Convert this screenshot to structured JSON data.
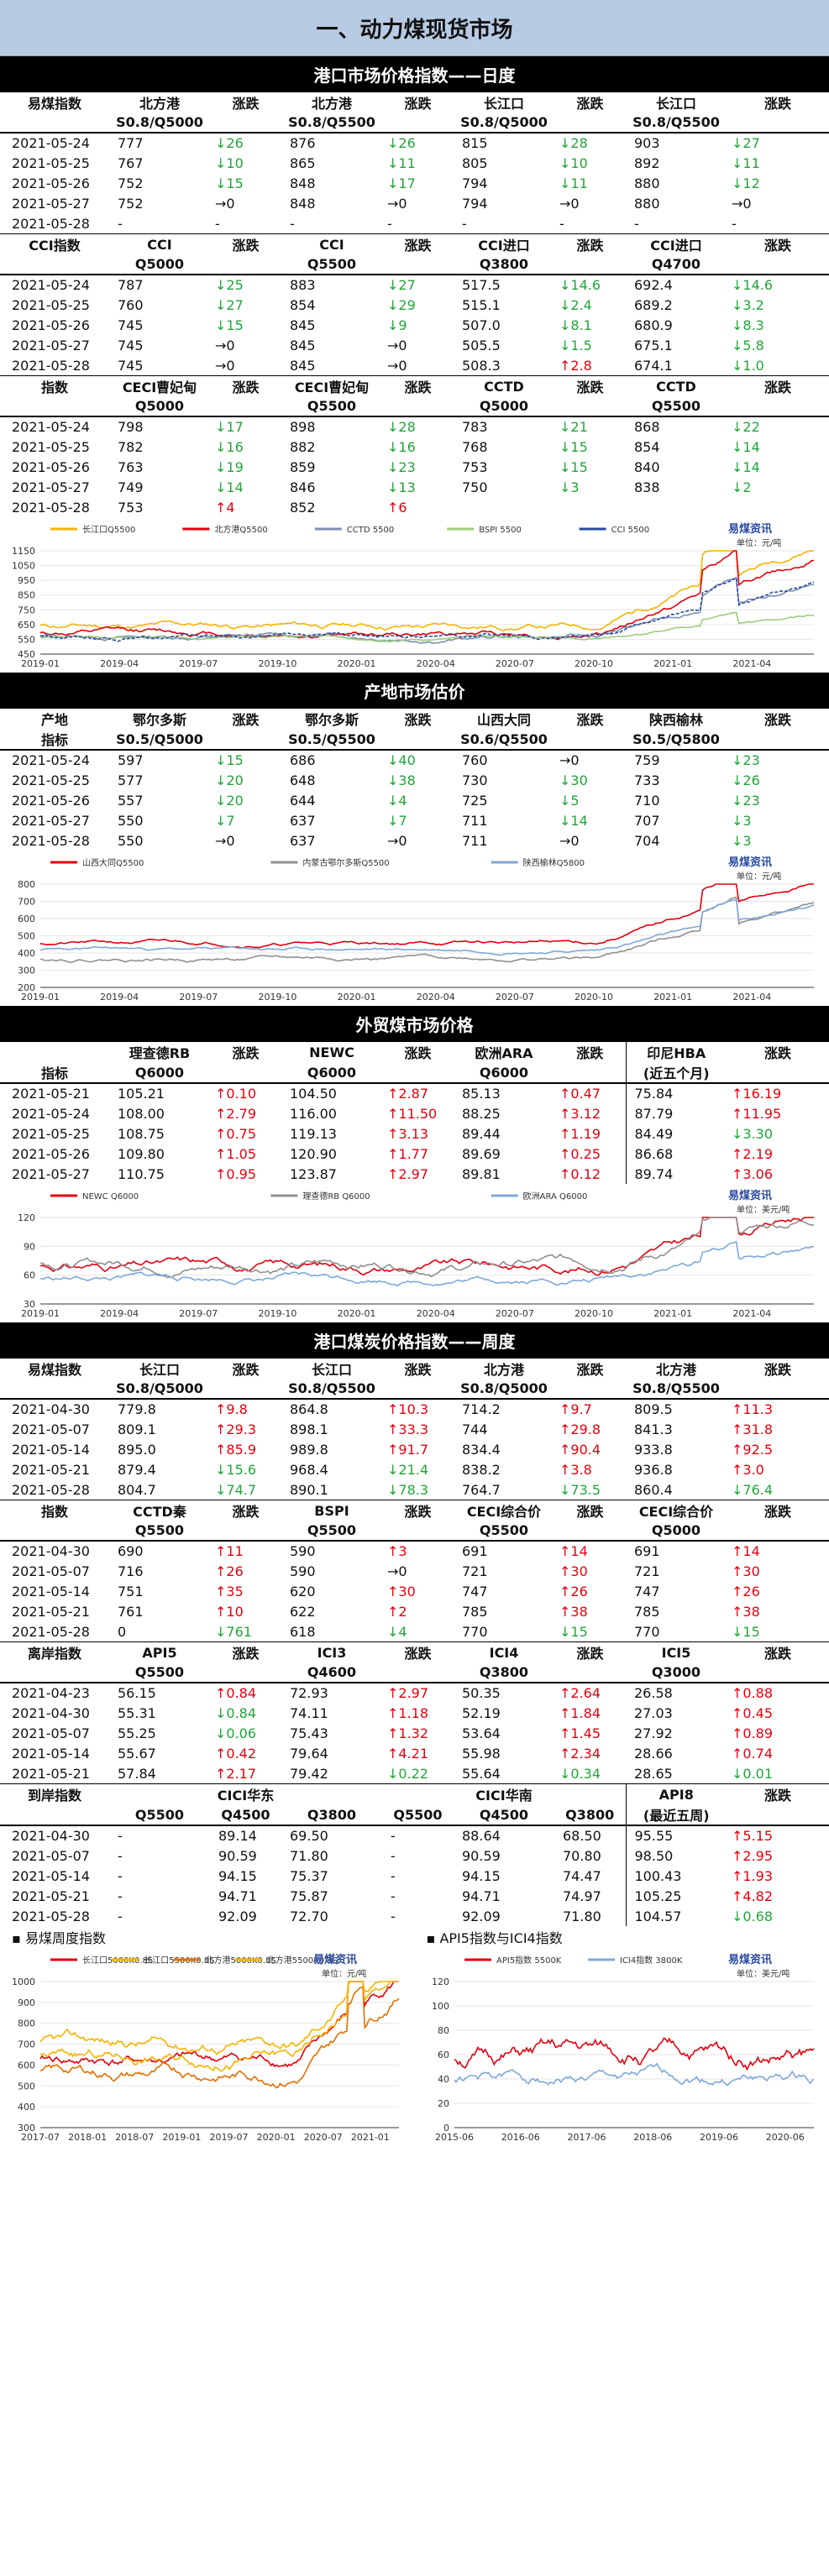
{
  "title": "一、动力煤现货市场",
  "sec1": "港口市场价格指数——日度",
  "t1": {
    "h1": [
      "易煤指数",
      "北方港",
      "涨跌",
      "北方港",
      "涨跌",
      "长江口",
      "涨跌",
      "长江口",
      "涨跌"
    ],
    "h2": [
      "",
      "S0.8/Q5000",
      "",
      "S0.8/Q5500",
      "",
      "S0.8/Q5000",
      "",
      "S0.8/Q5500",
      ""
    ],
    "rows": [
      [
        "2021-05-24",
        "777",
        "↓26",
        "876",
        "↓26",
        "815",
        "↓28",
        "903",
        "↓27"
      ],
      [
        "2021-05-25",
        "767",
        "↓10",
        "865",
        "↓11",
        "805",
        "↓10",
        "892",
        "↓11"
      ],
      [
        "2021-05-26",
        "752",
        "↓15",
        "848",
        "↓17",
        "794",
        "↓11",
        "880",
        "↓12"
      ],
      [
        "2021-05-27",
        "752",
        "→0",
        "848",
        "→0",
        "794",
        "→0",
        "880",
        "→0"
      ],
      [
        "2021-05-28",
        "-",
        "-",
        "-",
        "-",
        "-",
        "-",
        "-",
        "-"
      ]
    ]
  },
  "t2": {
    "h1": [
      "CCI指数",
      "CCI",
      "涨跌",
      "CCI",
      "涨跌",
      "CCI进口",
      "涨跌",
      "CCI进口",
      "涨跌"
    ],
    "h2": [
      "",
      "Q5000",
      "",
      "Q5500",
      "",
      "Q3800",
      "",
      "Q4700",
      ""
    ],
    "rows": [
      [
        "2021-05-24",
        "787",
        "↓25",
        "883",
        "↓27",
        "517.5",
        "↓14.6",
        "692.4",
        "↓14.6"
      ],
      [
        "2021-05-25",
        "760",
        "↓27",
        "854",
        "↓29",
        "515.1",
        "↓2.4",
        "689.2",
        "↓3.2"
      ],
      [
        "2021-05-26",
        "745",
        "↓15",
        "845",
        "↓9",
        "507.0",
        "↓8.1",
        "680.9",
        "↓8.3"
      ],
      [
        "2021-05-27",
        "745",
        "→0",
        "845",
        "→0",
        "505.5",
        "↓1.5",
        "675.1",
        "↓5.8"
      ],
      [
        "2021-05-28",
        "745",
        "→0",
        "845",
        "→0",
        "508.3",
        "↑2.8",
        "674.1",
        "↓1.0"
      ]
    ]
  },
  "t3": {
    "h1": [
      "指数",
      "CECI曹妃甸",
      "涨跌",
      "CECI曹妃甸",
      "涨跌",
      "CCTD",
      "涨跌",
      "CCTD",
      "涨跌"
    ],
    "h2": [
      "",
      "Q5000",
      "",
      "Q5500",
      "",
      "Q5000",
      "",
      "Q5500",
      ""
    ],
    "rows": [
      [
        "2021-05-24",
        "798",
        "↓17",
        "898",
        "↓28",
        "783",
        "↓21",
        "868",
        "↓22"
      ],
      [
        "2021-05-25",
        "782",
        "↓16",
        "882",
        "↓16",
        "768",
        "↓15",
        "854",
        "↓14"
      ],
      [
        "2021-05-26",
        "763",
        "↓19",
        "859",
        "↓23",
        "753",
        "↓15",
        "840",
        "↓14"
      ],
      [
        "2021-05-27",
        "749",
        "↓14",
        "846",
        "↓13",
        "750",
        "↓3",
        "838",
        "↓2"
      ],
      [
        "2021-05-28",
        "753",
        "↑4",
        "852",
        "↑6",
        "",
        "",
        "",
        ""
      ]
    ]
  },
  "chart1": {
    "legend": [
      "长江口Q5500",
      "北方港Q5500",
      "CCTD 5500",
      "BSPI 5500",
      "CCI 5500"
    ],
    "unit": "单位：元/吨",
    "logo": "易煤资讯",
    "logo_sub": "Yimei Info",
    "colors": [
      "#f5b400",
      "#e3000f",
      "#7d8fb0",
      "#9dcc7a",
      "#2a4aa0"
    ],
    "yticks": [
      "1150",
      "1050",
      "950",
      "850",
      "750",
      "650",
      "550",
      "450"
    ],
    "xticks": [
      "2019-01",
      "2019-04",
      "2019-07",
      "2019-10",
      "2020-01",
      "2020-04",
      "2020-07",
      "2020-10",
      "2021-01",
      "2021-04"
    ]
  },
  "sec2": "产地市场估价",
  "t4": {
    "h1": [
      "产地",
      "鄂尔多斯",
      "涨跌",
      "鄂尔多斯",
      "涨跌",
      "山西大同",
      "涨跌",
      "陕西榆林",
      "涨跌"
    ],
    "h2": [
      "指标",
      "S0.5/Q5000",
      "",
      "S0.5/Q5500",
      "",
      "S0.6/Q5500",
      "",
      "S0.5/Q5800",
      ""
    ],
    "rows": [
      [
        "2021-05-24",
        "597",
        "↓15",
        "686",
        "↓40",
        "760",
        "→0",
        "759",
        "↓23"
      ],
      [
        "2021-05-25",
        "577",
        "↓20",
        "648",
        "↓38",
        "730",
        "↓30",
        "733",
        "↓26"
      ],
      [
        "2021-05-26",
        "557",
        "↓20",
        "644",
        "↓4",
        "725",
        "↓5",
        "710",
        "↓23"
      ],
      [
        "2021-05-27",
        "550",
        "↓7",
        "637",
        "↓7",
        "711",
        "↓14",
        "707",
        "↓3"
      ],
      [
        "2021-05-28",
        "550",
        "→0",
        "637",
        "→0",
        "711",
        "→0",
        "704",
        "↓3"
      ]
    ]
  },
  "chart2": {
    "legend": [
      "山西大同Q5500",
      "内蒙古鄂尔多斯Q5500",
      "陕西榆林Q5800"
    ],
    "unit": "单位：元/吨",
    "logo": "易煤资讯",
    "colors": [
      "#e3000f",
      "#909090",
      "#7fa8d8"
    ],
    "yticks": [
      "800",
      "700",
      "600",
      "500",
      "400",
      "300",
      "200"
    ],
    "xticks": [
      "2019-01",
      "2019-04",
      "2019-07",
      "2019-10",
      "2020-01",
      "2020-04",
      "2020-07",
      "2020-10",
      "2021-01",
      "2021-04"
    ]
  },
  "sec3": "外贸煤市场价格",
  "t5": {
    "h1": [
      "",
      "理查德RB",
      "涨跌",
      "NEWC",
      "涨跌",
      "欧洲ARA",
      "涨跌",
      "印尼HBA",
      "涨跌"
    ],
    "h2": [
      "指标",
      "Q6000",
      "",
      "Q6000",
      "",
      "Q6000",
      "",
      "(近五个月)",
      ""
    ],
    "rows": [
      [
        "2021-05-21",
        "105.21",
        "↑0.10",
        "104.50",
        "↑2.87",
        "85.13",
        "↑0.47",
        "75.84",
        "↑16.19"
      ],
      [
        "2021-05-24",
        "108.00",
        "↑2.79",
        "116.00",
        "↑11.50",
        "88.25",
        "↑3.12",
        "87.79",
        "↑11.95"
      ],
      [
        "2021-05-25",
        "108.75",
        "↑0.75",
        "119.13",
        "↑3.13",
        "89.44",
        "↑1.19",
        "84.49",
        "↓3.30"
      ],
      [
        "2021-05-26",
        "109.80",
        "↑1.05",
        "120.90",
        "↑1.77",
        "89.69",
        "↑0.25",
        "86.68",
        "↑2.19"
      ],
      [
        "2021-05-27",
        "110.75",
        "↑0.95",
        "123.87",
        "↑2.97",
        "89.81",
        "↑0.12",
        "89.74",
        "↑3.06"
      ]
    ]
  },
  "chart3": {
    "legend": [
      "NEWC Q6000",
      "理查德RB Q6000",
      "欧洲ARA Q6000"
    ],
    "unit": "单位：美元/吨",
    "logo": "易煤资讯",
    "colors": [
      "#e3000f",
      "#909090",
      "#7fa8d8"
    ],
    "yticks": [
      "120",
      "90",
      "60",
      "30"
    ],
    "xticks": [
      "2019-01",
      "2019-04",
      "2019-07",
      "2019-10",
      "2020-01",
      "2020-04",
      "2020-07",
      "2020-10",
      "2021-01",
      "2021-04"
    ]
  },
  "sec4": "港口煤炭价格指数——周度",
  "t6": {
    "h1": [
      "易煤指数",
      "长江口",
      "涨跌",
      "长江口",
      "涨跌",
      "北方港",
      "涨跌",
      "北方港",
      "涨跌"
    ],
    "h2": [
      "",
      "S0.8/Q5000",
      "",
      "S0.8/Q5500",
      "",
      "S0.8/Q5000",
      "",
      "S0.8/Q5500",
      ""
    ],
    "rows": [
      [
        "2021-04-30",
        "779.8",
        "↑9.8",
        "864.8",
        "↑10.3",
        "714.2",
        "↑9.7",
        "809.5",
        "↑11.3"
      ],
      [
        "2021-05-07",
        "809.1",
        "↑29.3",
        "898.1",
        "↑33.3",
        "744",
        "↑29.8",
        "841.3",
        "↑31.8"
      ],
      [
        "2021-05-14",
        "895.0",
        "↑85.9",
        "989.8",
        "↑91.7",
        "834.4",
        "↑90.4",
        "933.8",
        "↑92.5"
      ],
      [
        "2021-05-21",
        "879.4",
        "↓15.6",
        "968.4",
        "↓21.4",
        "838.2",
        "↑3.8",
        "936.8",
        "↑3.0"
      ],
      [
        "2021-05-28",
        "804.7",
        "↓74.7",
        "890.1",
        "↓78.3",
        "764.7",
        "↓73.5",
        "860.4",
        "↓76.4"
      ]
    ]
  },
  "t7": {
    "h1": [
      "指数",
      "CCTD秦",
      "涨跌",
      "BSPI",
      "涨跌",
      "CECI综合价",
      "涨跌",
      "CECI综合价",
      "涨跌"
    ],
    "h2": [
      "",
      "Q5500",
      "",
      "Q5500",
      "",
      "Q5500",
      "",
      "Q5000",
      ""
    ],
    "rows": [
      [
        "2021-04-30",
        "690",
        "↑11",
        "590",
        "↑3",
        "691",
        "↑14",
        "691",
        "↑14"
      ],
      [
        "2021-05-07",
        "716",
        "↑26",
        "590",
        "→0",
        "721",
        "↑30",
        "721",
        "↑30"
      ],
      [
        "2021-05-14",
        "751",
        "↑35",
        "620",
        "↑30",
        "747",
        "↑26",
        "747",
        "↑26"
      ],
      [
        "2021-05-21",
        "761",
        "↑10",
        "622",
        "↑2",
        "785",
        "↑38",
        "785",
        "↑38"
      ],
      [
        "2021-05-28",
        "0",
        "↓761",
        "618",
        "↓4",
        "770",
        "↓15",
        "770",
        "↓15"
      ]
    ]
  },
  "t8": {
    "h1": [
      "离岸指数",
      "API5",
      "涨跌",
      "ICI3",
      "涨跌",
      "ICI4",
      "涨跌",
      "ICI5",
      "涨跌"
    ],
    "h2": [
      "",
      "Q5500",
      "",
      "Q4600",
      "",
      "Q3800",
      "",
      "Q3000",
      ""
    ],
    "rows": [
      [
        "2021-04-23",
        "56.15",
        "↑0.84",
        "72.93",
        "↑2.97",
        "50.35",
        "↑2.64",
        "26.58",
        "↑0.88"
      ],
      [
        "2021-04-30",
        "55.31",
        "↓0.84",
        "74.11",
        "↑1.18",
        "52.19",
        "↑1.84",
        "27.03",
        "↑0.45"
      ],
      [
        "2021-05-07",
        "55.25",
        "↓0.06",
        "75.43",
        "↑1.32",
        "53.64",
        "↑1.45",
        "27.92",
        "↑0.89"
      ],
      [
        "2021-05-14",
        "55.67",
        "↑0.42",
        "79.64",
        "↑4.21",
        "55.98",
        "↑2.34",
        "28.66",
        "↑0.74"
      ],
      [
        "2021-05-21",
        "57.84",
        "↑2.17",
        "79.42",
        "↓0.22",
        "55.64",
        "↓0.34",
        "28.65",
        "↓0.01"
      ]
    ]
  },
  "t9": {
    "h1": [
      "到岸指数",
      "",
      "CICI华东",
      "",
      "",
      "CICI华南",
      "",
      "API8",
      "涨跌"
    ],
    "h2": [
      "",
      "Q5500",
      "Q4500",
      "Q3800",
      "Q5500",
      "Q4500",
      "Q3800",
      "(最近五周)",
      ""
    ],
    "rows": [
      [
        "2021-04-30",
        "-",
        "89.14",
        "69.50",
        "-",
        "88.64",
        "68.50",
        "95.55",
        "↑5.15"
      ],
      [
        "2021-05-07",
        "-",
        "90.59",
        "71.80",
        "-",
        "90.59",
        "70.80",
        "98.50",
        "↑2.95"
      ],
      [
        "2021-05-14",
        "-",
        "94.15",
        "75.37",
        "-",
        "94.15",
        "74.47",
        "100.43",
        "↑1.93"
      ],
      [
        "2021-05-21",
        "-",
        "94.71",
        "75.87",
        "-",
        "94.71",
        "74.97",
        "105.25",
        "↑4.82"
      ],
      [
        "2021-05-28",
        "-",
        "92.09",
        "72.70",
        "-",
        "92.09",
        "71.80",
        "104.57",
        "↓0.68"
      ]
    ]
  },
  "bottom": {
    "left_title": "易煤周度指数",
    "right_title": "API5指数与ICI4指数",
    "left_legend": [
      "长江口5000K0.8S",
      "长江口5500K0.8S",
      "北方港5000K0.8S",
      "北方港5500K0.8S"
    ],
    "left_colors": [
      "#e3000f",
      "#f5b400",
      "#e37000",
      "#f5b400"
    ],
    "left_yticks": [
      "1000",
      "900",
      "800",
      "700",
      "600",
      "500",
      "400",
      "300"
    ],
    "left_xticks": [
      "2017-07",
      "2018-01",
      "2018-07",
      "2019-01",
      "2019-07",
      "2020-01",
      "2020-07",
      "2021-01"
    ],
    "right_legend": [
      "API5指数 5500K",
      "ICI4指数 3800K"
    ],
    "right_colors": [
      "#e3000f",
      "#7fa8d8"
    ],
    "right_yticks": [
      "120",
      "100",
      "80",
      "60",
      "40",
      "20",
      "0"
    ],
    "right_xticks": [
      "2015-06",
      "2016-06",
      "2017-06",
      "2018-06",
      "2019-06",
      "2020-06"
    ],
    "unit_left": "单位：元/吨",
    "unit_right": "单位：美元/吨",
    "logo": "易煤资讯"
  }
}
